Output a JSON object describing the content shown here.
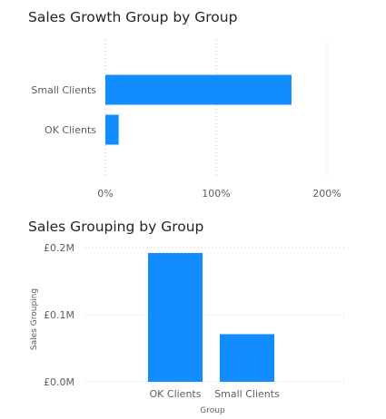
{
  "chart_data": [
    {
      "type": "bar",
      "orientation": "horizontal",
      "title": "Sales Growth Group by Group",
      "categories": [
        "Small Clients",
        "OK Clients"
      ],
      "values": [
        168,
        12
      ],
      "value_unit": "%",
      "xlim": [
        0,
        200
      ],
      "x_ticks": [
        "0%",
        "100%",
        "200%"
      ],
      "xlabel": "",
      "ylabel": "",
      "grid": "vertical dotted",
      "bar_color": "#118DFF"
    },
    {
      "type": "bar",
      "orientation": "vertical",
      "title": "Sales Grouping by Group",
      "categories": [
        "OK Clients",
        "Small Clients"
      ],
      "values": [
        0.192,
        0.071
      ],
      "value_unit": "£M",
      "ylim": [
        0,
        0.2
      ],
      "y_ticks": [
        "£0.0M",
        "£0.1M",
        "£0.2M"
      ],
      "xlabel": "Group",
      "ylabel": "Sales Grouping",
      "grid": "horizontal dotted",
      "bar_color": "#118DFF"
    }
  ]
}
